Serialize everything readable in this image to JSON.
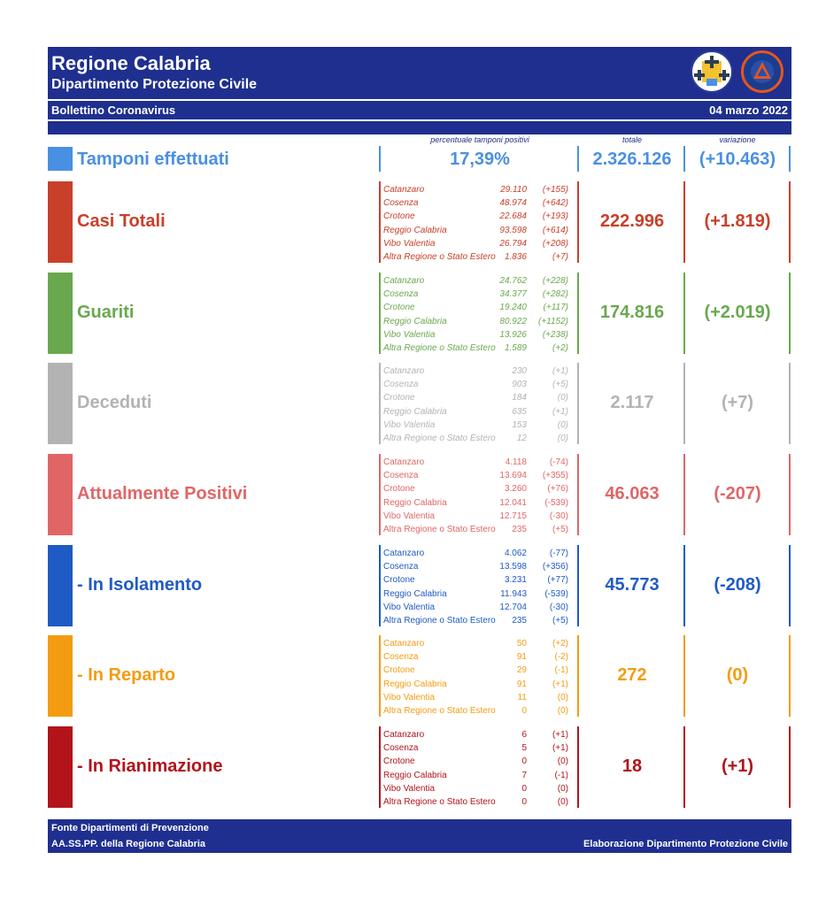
{
  "header": {
    "title": "Regione Calabria",
    "subtitle": "Dipartimento Protezione Civile",
    "bulletin": "Bollettino Coronavirus",
    "date": "04 marzo 2022"
  },
  "columns": {
    "percent_positive": "percentuale tamponi positivi",
    "total": "totale",
    "variation": "variazione"
  },
  "tamponi": {
    "label": "Tamponi effettuati",
    "percent": "17,39%",
    "total": "2.326.126",
    "variation": "(+10.463)",
    "color": "#4a90e2"
  },
  "sections": [
    {
      "label": "Casi Totali",
      "color": "#c8402a",
      "total": "222.996",
      "variation": "(+1.819)",
      "rows": [
        {
          "name": "Catanzaro",
          "value": "29.110",
          "delta": "(+155)"
        },
        {
          "name": "Cosenza",
          "value": "48.974",
          "delta": "(+642)"
        },
        {
          "name": "Crotone",
          "value": "22.684",
          "delta": "(+193)"
        },
        {
          "name": "Reggio Calabria",
          "value": "93.598",
          "delta": "(+614)"
        },
        {
          "name": "Vibo Valentia",
          "value": "26.794",
          "delta": "(+208)"
        },
        {
          "name": "Altra Regione o Stato Estero",
          "value": "1.836",
          "delta": "(+7)"
        }
      ]
    },
    {
      "label": "Guariti",
      "color": "#6aa84f",
      "total": "174.816",
      "variation": "(+2.019)",
      "rows": [
        {
          "name": "Catanzaro",
          "value": "24.762",
          "delta": "(+228)"
        },
        {
          "name": "Cosenza",
          "value": "34.377",
          "delta": "(+282)"
        },
        {
          "name": "Crotone",
          "value": "19.240",
          "delta": "(+117)"
        },
        {
          "name": "Reggio Calabria",
          "value": "80.922",
          "delta": "(+1152)"
        },
        {
          "name": "Vibo Valentia",
          "value": "13.926",
          "delta": "(+238)"
        },
        {
          "name": "Altra Regione o Stato Estero",
          "value": "1.589",
          "delta": "(+2)"
        }
      ]
    },
    {
      "label": "Deceduti",
      "color": "#b3b3b3",
      "total": "2.117",
      "variation": "(+7)",
      "rows": [
        {
          "name": "Catanzaro",
          "value": "230",
          "delta": "(+1)"
        },
        {
          "name": "Cosenza",
          "value": "903",
          "delta": "(+5)"
        },
        {
          "name": "Crotone",
          "value": "184",
          "delta": "(0)"
        },
        {
          "name": "Reggio Calabria",
          "value": "635",
          "delta": "(+1)"
        },
        {
          "name": "Vibo Valentia",
          "value": "153",
          "delta": "(0)"
        },
        {
          "name": "Altra Regione o Stato Estero",
          "value": "12",
          "delta": "(0)"
        }
      ]
    },
    {
      "label": "Attualmente Positivi",
      "color": "#e06666",
      "total": "46.063",
      "variation": "(-207)",
      "rows": [
        {
          "name": "Catanzaro",
          "value": "4.118",
          "delta": "(-74)"
        },
        {
          "name": "Cosenza",
          "value": "13.694",
          "delta": "(+355)"
        },
        {
          "name": "Crotone",
          "value": "3.260",
          "delta": "(+76)"
        },
        {
          "name": "Reggio Calabria",
          "value": "12.041",
          "delta": "(-539)"
        },
        {
          "name": "Vibo Valentia",
          "value": "12.715",
          "delta": "(-30)"
        },
        {
          "name": "Altra Regione o Stato Estero",
          "value": "235",
          "delta": "(+5)"
        }
      ]
    },
    {
      "label": "- In Isolamento",
      "color": "#1f5bc4",
      "total": "45.773",
      "variation": "(-208)",
      "rows": [
        {
          "name": "Catanzaro",
          "value": "4.062",
          "delta": "(-77)"
        },
        {
          "name": "Cosenza",
          "value": "13.598",
          "delta": "(+356)"
        },
        {
          "name": "Crotone",
          "value": "3.231",
          "delta": "(+77)"
        },
        {
          "name": "Reggio Calabria",
          "value": "11.943",
          "delta": "(-539)"
        },
        {
          "name": "Vibo Valentia",
          "value": "12.704",
          "delta": "(-30)"
        },
        {
          "name": "Altra Regione o Stato Estero",
          "value": "235",
          "delta": "(+5)"
        }
      ]
    },
    {
      "label": "- In Reparto",
      "color": "#f39c12",
      "total": "272",
      "variation": "(0)",
      "rows": [
        {
          "name": "Catanzaro",
          "value": "50",
          "delta": "(+2)"
        },
        {
          "name": "Cosenza",
          "value": "91",
          "delta": "(-2)"
        },
        {
          "name": "Crotone",
          "value": "29",
          "delta": "(-1)"
        },
        {
          "name": "Reggio Calabria",
          "value": "91",
          "delta": "(+1)"
        },
        {
          "name": "Vibo Valentia",
          "value": "11",
          "delta": "(0)"
        },
        {
          "name": "Altra Regione o Stato Estero",
          "value": "0",
          "delta": "(0)"
        }
      ]
    },
    {
      "label": "- In Rianimazione",
      "color": "#b3131b",
      "total": "18",
      "variation": "(+1)",
      "rows": [
        {
          "name": "Catanzaro",
          "value": "6",
          "delta": "(+1)"
        },
        {
          "name": "Cosenza",
          "value": "5",
          "delta": "(+1)"
        },
        {
          "name": "Crotone",
          "value": "0",
          "delta": "(0)"
        },
        {
          "name": "Reggio Calabria",
          "value": "7",
          "delta": "(-1)"
        },
        {
          "name": "Vibo Valentia",
          "value": "0",
          "delta": "(0)"
        },
        {
          "name": "Altra Regione o Stato Estero",
          "value": "0",
          "delta": "(0)"
        }
      ]
    }
  ],
  "footer": {
    "source1": "Fonte Dipartimenti di Prevenzione",
    "source2": "AA.SS.PP.  della Regione Calabria",
    "credit": "Elaborazione Dipartimento Protezione Civile"
  }
}
